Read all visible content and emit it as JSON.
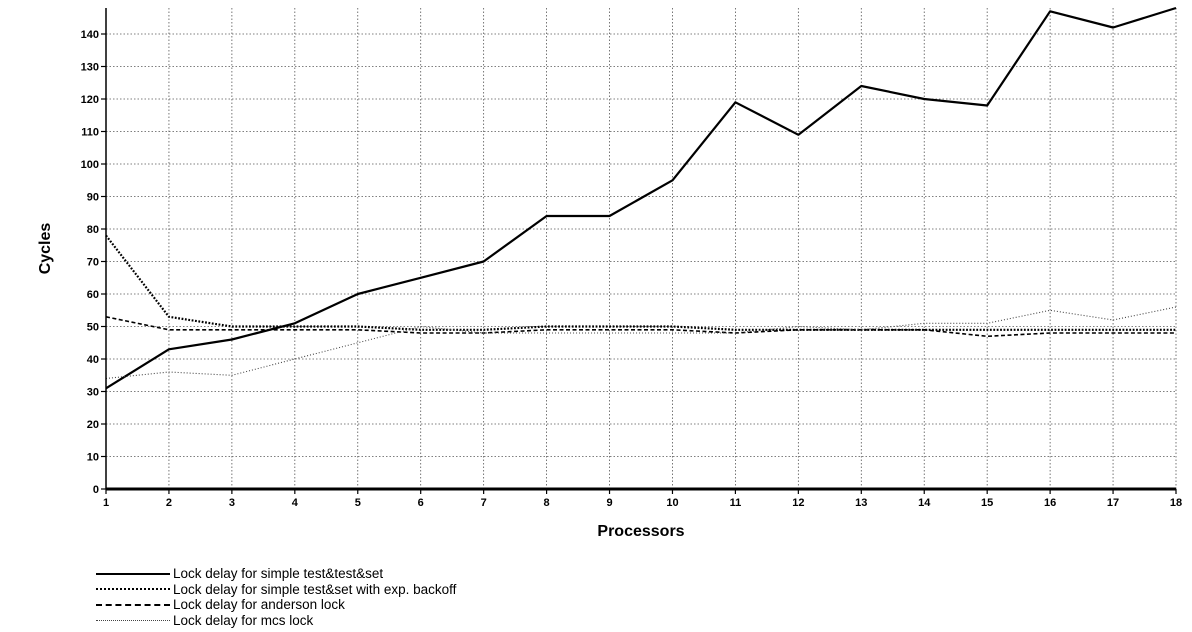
{
  "chart_data": {
    "type": "line",
    "xlabel": "Processors",
    "ylabel": "Cycles",
    "x": [
      1,
      2,
      3,
      4,
      5,
      6,
      7,
      8,
      9,
      10,
      11,
      12,
      13,
      14,
      15,
      16,
      17,
      18
    ],
    "xlim": [
      1,
      18
    ],
    "ylim": [
      0,
      148
    ],
    "yticks": [
      0,
      10,
      20,
      30,
      40,
      50,
      60,
      70,
      80,
      90,
      100,
      110,
      120,
      130,
      140
    ],
    "grid": true,
    "legend_position": "bottom-left",
    "series": [
      {
        "name": "Lock delay for simple test&test&set",
        "style": "solid",
        "color": "#000000",
        "values": [
          31,
          43,
          46,
          51,
          60,
          65,
          70,
          84,
          84,
          95,
          119,
          109,
          124,
          120,
          118,
          147,
          142,
          148
        ]
      },
      {
        "name": "Lock delay for simple test&set with exp. backoff",
        "style": "dotted",
        "color": "#000000",
        "values": [
          78,
          53,
          50,
          50,
          50,
          49,
          49,
          50,
          50,
          50,
          49,
          49,
          49,
          49,
          49,
          49,
          49,
          49
        ]
      },
      {
        "name": "Lock delay for anderson lock",
        "style": "dashed",
        "color": "#000000",
        "values": [
          53,
          49,
          49,
          49,
          49,
          48,
          48,
          49,
          49,
          49,
          48,
          49,
          49,
          49,
          47,
          48,
          48,
          48
        ]
      },
      {
        "name": "Lock delay for mcs lock",
        "style": "fine-dotted",
        "color": "#444444",
        "values": [
          34,
          36,
          35,
          40,
          45,
          50,
          48,
          48,
          48,
          48,
          48,
          50,
          49,
          51,
          51,
          55,
          52,
          56
        ]
      }
    ]
  }
}
